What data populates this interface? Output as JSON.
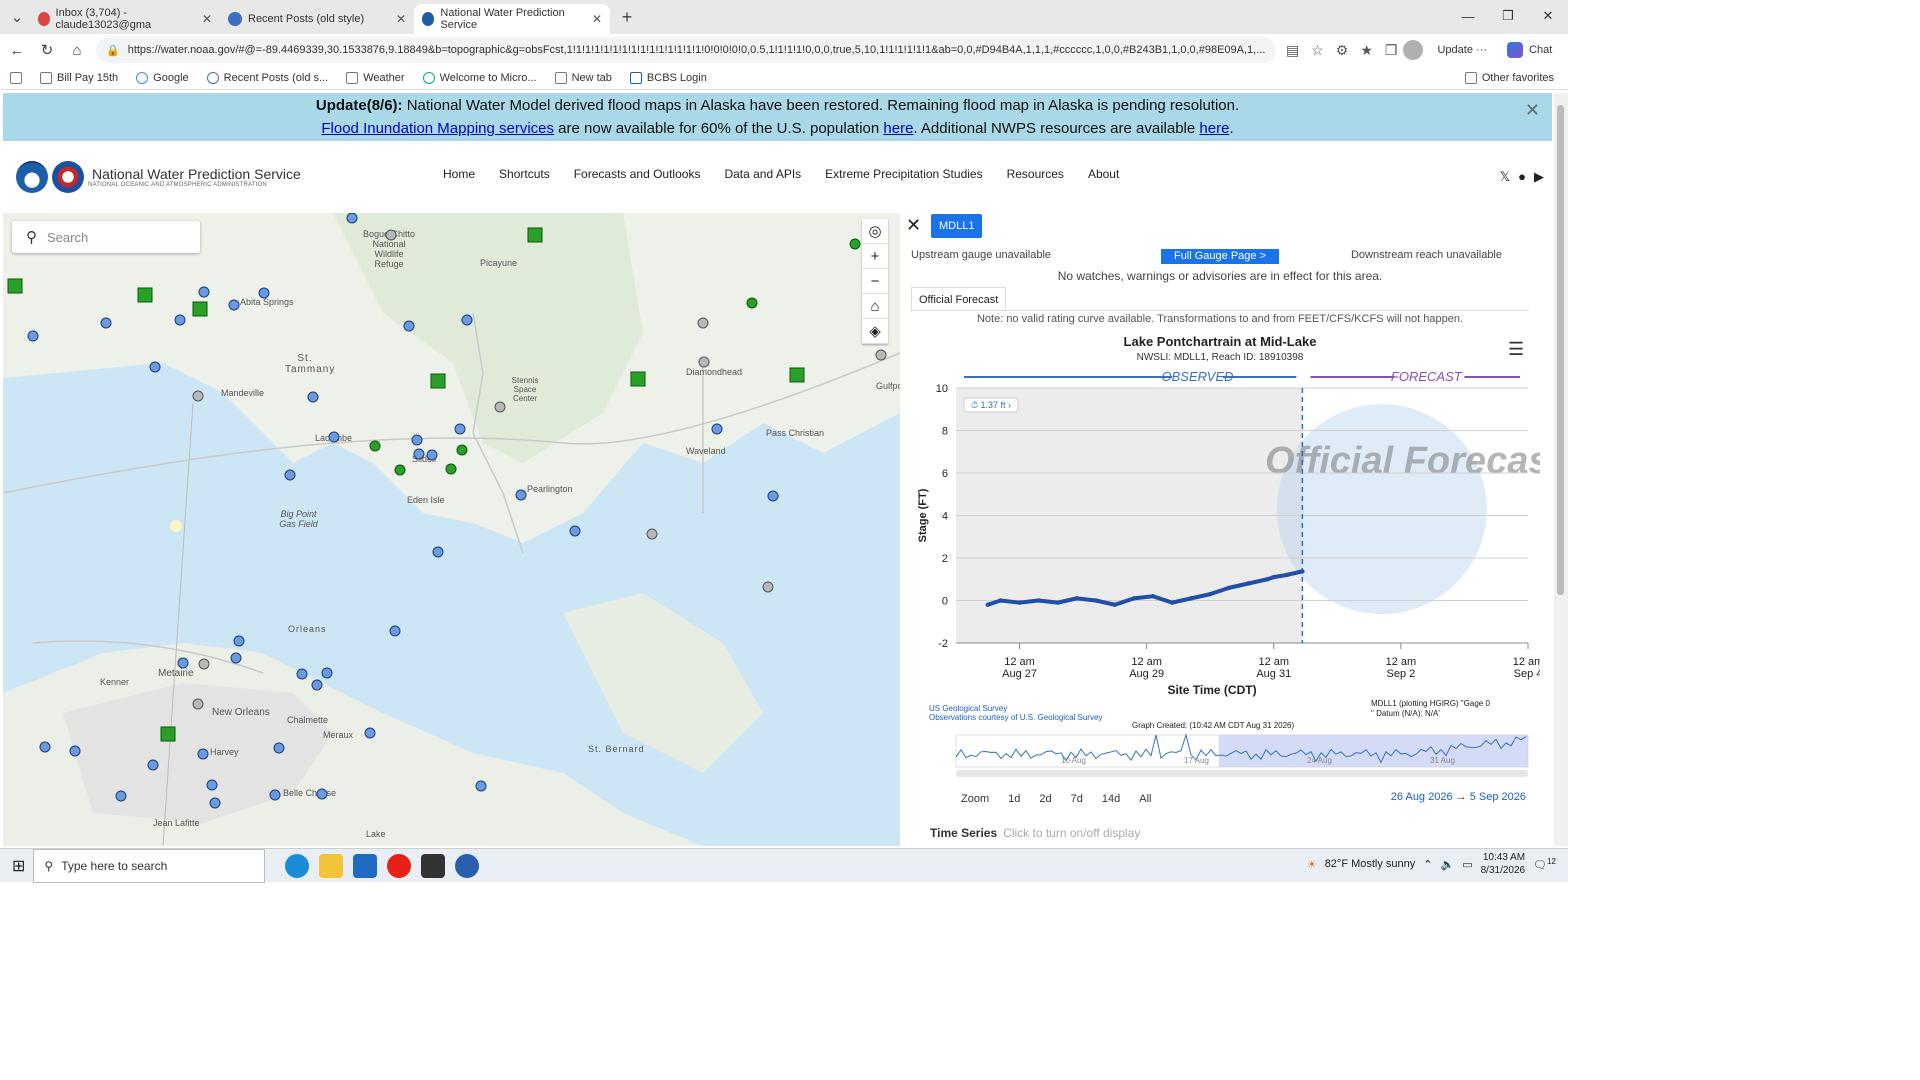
{
  "tabs": [
    {
      "label": "Inbox (3,704) - claude13023@gma",
      "color": "#d44"
    },
    {
      "label": "Recent Posts (old style)",
      "color": "#3b6fc4"
    },
    {
      "label": "National Water Prediction Service",
      "color": "#1a5fa8"
    }
  ],
  "address": {
    "url": "https://water.noaa.gov/#@=-89.4469339,30.1533876,9.18849&b=topographic&g=obsFcst,1!1!1!1!1!1!1!1!1!1!1!1!1!1!1!0!0!0!0!0,0.5,1!1!1!1!0,0,0,true,5,10,1!1!1!1!1!1&ab=0,0,#D94B4A,1,1,1,#cccccc,1,0,0,#B243B1,1,0,0,#98E09A,1,...",
    "update": "Update",
    "chat": "Chat"
  },
  "favorites": [
    "Bill Pay 15th",
    "Google",
    "Recent Posts (old s...",
    "Weather",
    "Welcome to Micro...",
    "New tab",
    "BCBS Login"
  ],
  "other_favorites": "Other favorites",
  "banner": {
    "line1_bold": "Update(8/6):",
    "line1": " National Water Model derived flood maps in Alaska have been restored. Remaining flood map in Alaska is pending resolution.",
    "link1": "Flood Inundation Mapping services",
    "mid": " are now available for 60% of the U.S. population ",
    "link2": "here",
    "mid2": ". Additional NWPS resources are available ",
    "link3": "here",
    "end": "."
  },
  "site": {
    "title": "National Water Prediction Service",
    "subtitle": "NATIONAL OCEANIC AND ATMOSPHERIC ADMINISTRATION"
  },
  "nav": [
    "Home",
    "Shortcuts",
    "Forecasts and Outlooks",
    "Data and APIs",
    "Extreme Precipitation Studies",
    "Resources",
    "About"
  ],
  "map": {
    "search_placeholder": "Search",
    "places": [
      "Bogue Chitto National Wildlife Refuge",
      "Picayune",
      "Abita Springs",
      "St. Tammany",
      "Mandeville",
      "Stennis Space Center",
      "Diamondhead",
      "Lacombe",
      "Slidell",
      "Pass Christian",
      "Waveland",
      "Eden Isle",
      "Pearlington",
      "Big Point Gas Field",
      "Orleans",
      "Kenner",
      "Metairie",
      "New Orleans",
      "Chalmette",
      "Meraux",
      "Harvey",
      "Belle Chasse",
      "St. Bernard",
      "Jean Lafitte",
      "Gulfport",
      "Lake"
    ]
  },
  "panel": {
    "gauge_id": "MDLL1",
    "upstream": "Upstream gauge unavailable",
    "full_gauge": "Full Gauge Page >",
    "downstream": "Downstream reach unavailable",
    "warnings": "No watches, warnings or advisories are in effect for this area.",
    "tab": "Official Forecast",
    "note": "Note: no valid rating curve available. Transformations to and from FEET/CFS/KCFS will not happen.",
    "zoom_label": "Zoom",
    "zoom_options": [
      "1d",
      "2d",
      "7d",
      "14d",
      "All"
    ],
    "range_from": "26 Aug 2026",
    "range_arrow": "→",
    "range_to": "5 Sep 2026",
    "time_series": "Time Series",
    "time_series_hint": "Click to turn on/off display"
  },
  "chart_data": {
    "type": "line",
    "title": "Lake Pontchartrain at Mid-Lake",
    "subtitle": "NWSLI: MDLL1, Reach ID: 18910398",
    "ylabel": "Stage (FT)",
    "xlabel": "Site Time (CDT)",
    "ylim": [
      -2,
      10
    ],
    "yticks": [
      -2,
      0,
      2,
      4,
      6,
      8,
      10
    ],
    "xticks": [
      "12 am Aug 27",
      "12 am Aug 29",
      "12 am Aug 31",
      "12 am Sep 2",
      "12 am Sep 4"
    ],
    "observed_label": "OBSERVED",
    "forecast_label": "FORECAST",
    "current_label": "1.37 ft",
    "watermark": "Official Forecast",
    "source1": "US Geological Survey",
    "source2": "Observations courtesy of U.S. Geological Survey",
    "graph_created": "Graph Created: (10:42 AM CDT Aug 31 2026)",
    "datum_note": "MDLL1 (plotting HGIRG) \"Gage 0\" Datum (N/A): N/A'",
    "navigator_labels": [
      "10 Aug",
      "17 Aug",
      "24 Aug",
      "31 Aug"
    ],
    "series": [
      {
        "name": "Observed",
        "color": "#1f4fa8",
        "x": [
          26.5,
          26.7,
          27.0,
          27.3,
          27.6,
          27.9,
          28.2,
          28.5,
          28.8,
          29.1,
          29.4,
          29.7,
          30.0,
          30.3,
          30.6,
          30.9,
          31.0,
          31.2,
          31.45
        ],
        "values": [
          -0.2,
          0.0,
          -0.1,
          0.0,
          -0.1,
          0.1,
          0.0,
          -0.2,
          0.1,
          0.2,
          -0.1,
          0.1,
          0.3,
          0.6,
          0.8,
          1.0,
          1.1,
          1.2,
          1.37
        ]
      }
    ]
  },
  "taskbar": {
    "search": "Type here to search",
    "weather": "82°F  Mostly sunny",
    "time": "10:43 AM",
    "date": "8/31/2026",
    "notif": "12"
  }
}
